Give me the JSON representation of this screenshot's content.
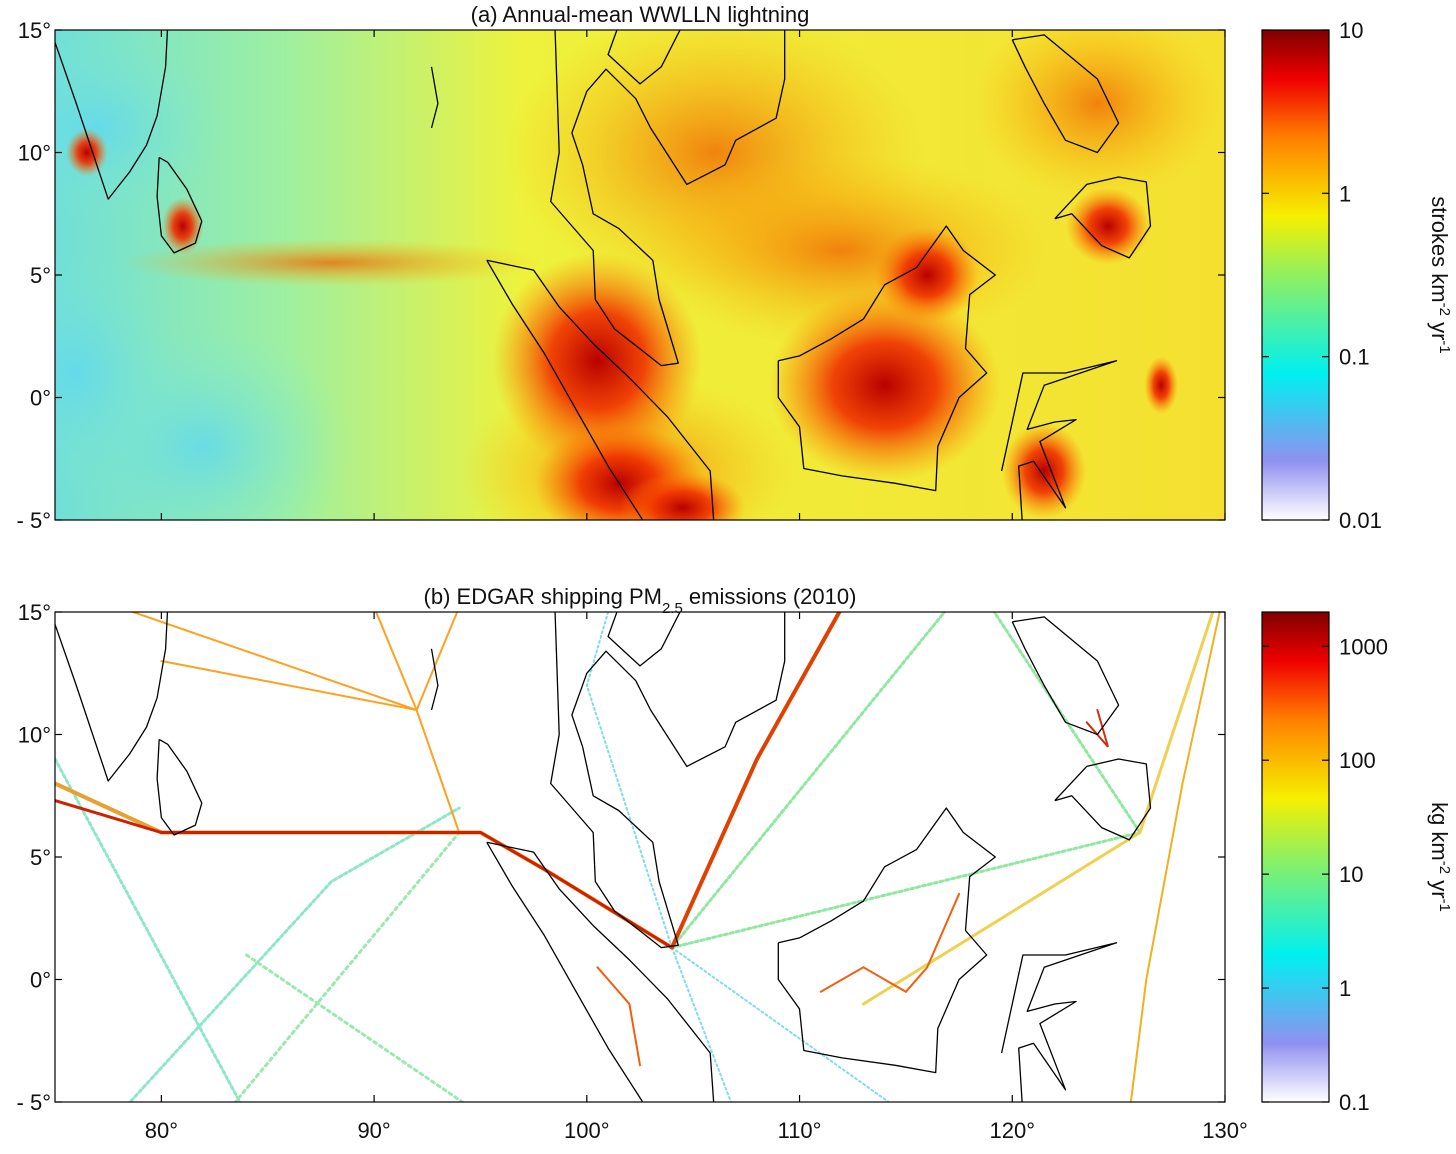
{
  "axes": {
    "lon_range": [
      75,
      130
    ],
    "lat_range": [
      -5,
      15
    ],
    "lat_ticks": [
      {
        "value": 15,
        "label": "15°"
      },
      {
        "value": 10,
        "label": "10°"
      },
      {
        "value": 5,
        "label": "5°"
      },
      {
        "value": 0,
        "label": "0°"
      },
      {
        "value": -5,
        "label": "- 5°"
      }
    ],
    "lon_ticks": [
      {
        "value": 80,
        "label": "80°"
      },
      {
        "value": 90,
        "label": "90°"
      },
      {
        "value": 100,
        "label": "100°"
      },
      {
        "value": 110,
        "label": "110°"
      },
      {
        "value": 120,
        "label": "120°"
      },
      {
        "value": 130,
        "label": "130°"
      }
    ]
  },
  "panels": [
    {
      "title_parts": [
        {
          "text": "(a) Annual-mean WWLLN lightning"
        }
      ],
      "colorbar": {
        "scale": "log",
        "lim": [
          0.01,
          10
        ],
        "ticks": [
          0.01,
          0.1,
          1,
          10
        ],
        "label_parts": [
          {
            "text": "strokes km"
          },
          {
            "text": "-2",
            "sup": true
          },
          {
            "text": " yr"
          },
          {
            "text": "-1",
            "sup": true
          }
        ]
      }
    },
    {
      "title_parts": [
        {
          "text": "(b) EDGAR shipping PM"
        },
        {
          "text": "2.5",
          "sub": true
        },
        {
          "text": " emissions (2010)"
        }
      ],
      "colorbar": {
        "scale": "log",
        "lim": [
          0.1,
          2000
        ],
        "ticks": [
          0.1,
          1,
          10,
          100,
          1000
        ],
        "label_parts": [
          {
            "text": "kg km"
          },
          {
            "text": "-2",
            "sup": true
          },
          {
            "text": " yr"
          },
          {
            "text": "-1",
            "sup": true
          }
        ]
      }
    }
  ]
}
